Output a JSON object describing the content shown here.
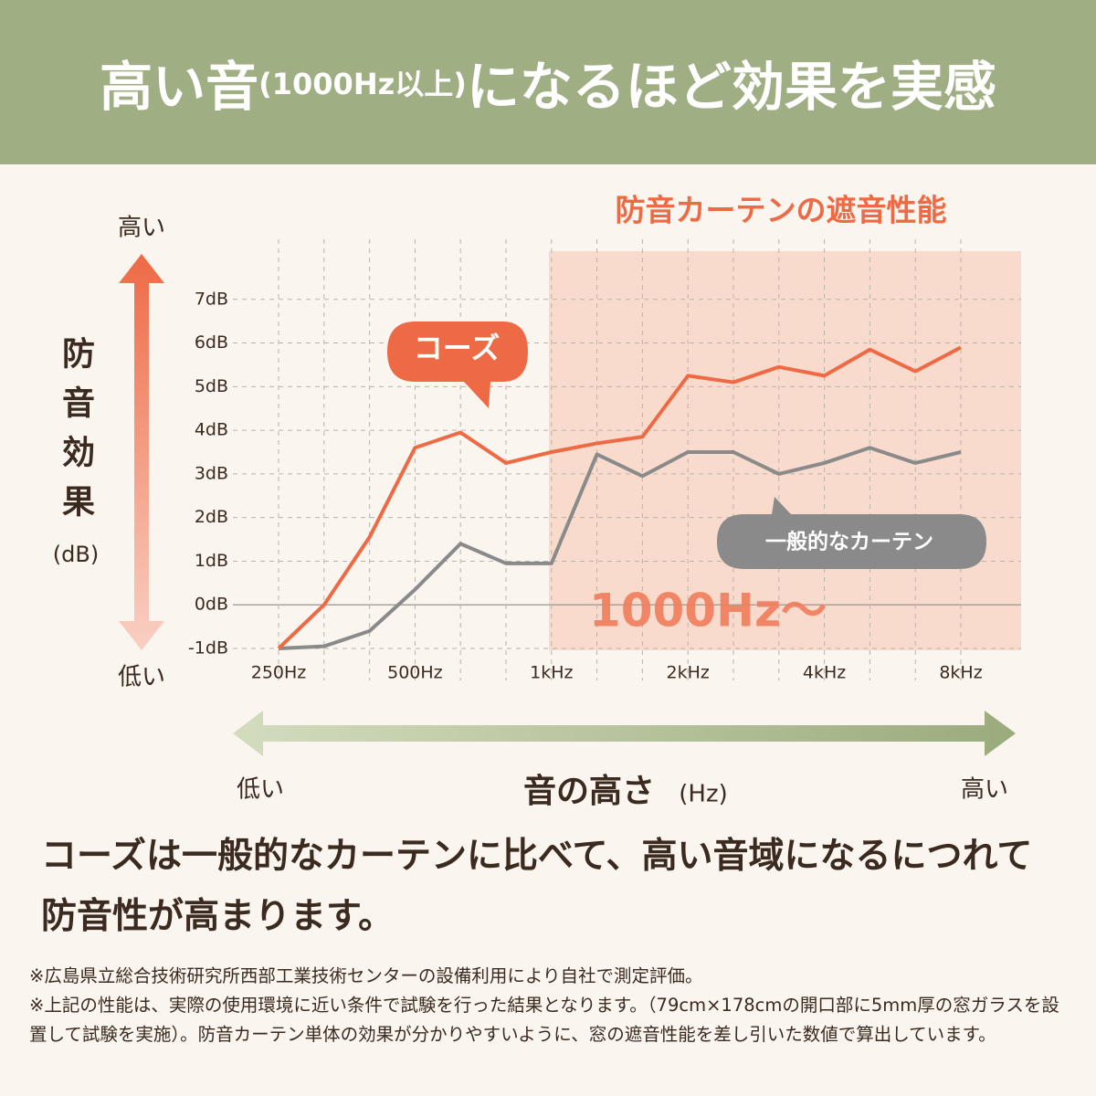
{
  "header": {
    "title": [
      "高い音",
      "(1000Hz以上)",
      "になるほど効果を実感"
    ]
  },
  "chart_data": {
    "type": "line",
    "title": "防音カーテンの遮音性能",
    "highlight_note": "1000Hz〜",
    "ylabel": "防音効果",
    "ylabel_unit": "(dB)",
    "y_arrow_labels": [
      "高い",
      "低い"
    ],
    "xlabel": "音の高さ",
    "xlabel_unit": "(Hz)",
    "x_arrow_labels": [
      "低い",
      "高い"
    ],
    "categories": [
      "250Hz",
      null,
      null,
      "500Hz",
      null,
      null,
      "1kHz",
      null,
      null,
      "2kHz",
      null,
      null,
      "4kHz",
      null,
      null,
      "8kHz"
    ],
    "series": [
      {
        "name": "コーズ",
        "color": "#ee6a45",
        "values": [
          -1,
          0,
          1.55,
          3.6,
          3.95,
          3.25,
          3.5,
          3.7,
          3.85,
          5.25,
          5.1,
          5.45,
          5.25,
          5.85,
          5.35,
          5.9
        ]
      },
      {
        "name": "一般的なカーテン",
        "color": "#8a8a8a",
        "values": [
          -1,
          -0.95,
          -0.6,
          0.35,
          1.4,
          0.95,
          0.95,
          3.45,
          2.95,
          3.5,
          3.5,
          3.0,
          3.25,
          3.6,
          3.25,
          3.5
        ]
      }
    ],
    "ylim": [
      -1,
      8
    ],
    "yticks": [
      {
        "value": -1,
        "label": "-1dB"
      },
      {
        "value": 0,
        "label": "0dB"
      },
      {
        "value": 1,
        "label": "1dB"
      },
      {
        "value": 2,
        "label": "2dB"
      },
      {
        "value": 3,
        "label": "3dB"
      },
      {
        "value": 4,
        "label": "4dB"
      },
      {
        "value": 5,
        "label": "5dB"
      },
      {
        "value": 6,
        "label": "6dB"
      },
      {
        "value": 7,
        "label": "7dB"
      }
    ],
    "grid": true
  },
  "body": {
    "text": "コーズは一般的なカーテンに比べて、高い音域になるにつれて防音性が高まります。"
  },
  "notes": [
    "※広島県立総合技術研究所西部工業技術センターの設備利用により自社で測定評価。",
    "※上記の性能は、実際の使用環境に近い条件で試験を行った結果となります。（79cm×178cmの開口部に5mm厚の窓ガラスを設置して試験を実施）。防音カーテン単体の効果が分かりやすいように、窓の遮音性能を差し引いた数値で算出しています。"
  ]
}
